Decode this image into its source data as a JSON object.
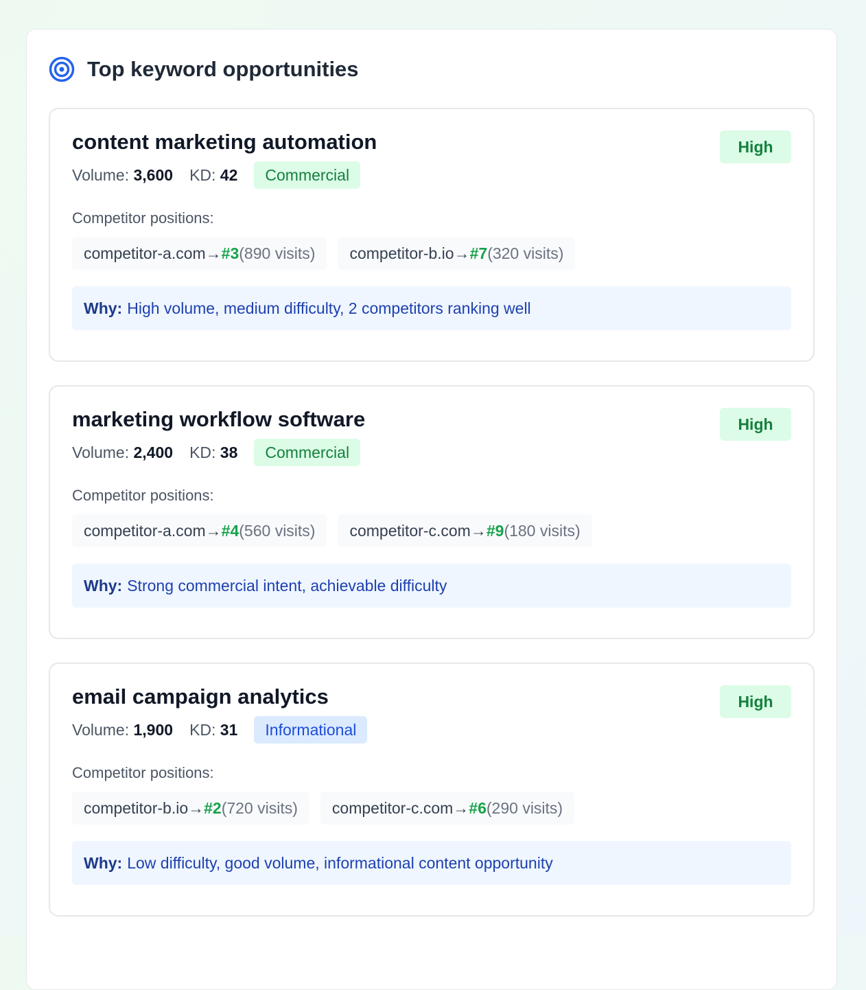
{
  "title": "Top keyword opportunities",
  "icon": "target-icon",
  "labels": {
    "volume": "Volume:",
    "kd": "KD:",
    "competitors": "Competitor positions:",
    "why": "Why:",
    "arrow": "→"
  },
  "colors": {
    "accent": "#2563eb",
    "high_bg": "#dcfce7",
    "high_fg": "#15803d",
    "commercial_bg": "#dcfce7",
    "commercial_fg": "#15803d",
    "informational_bg": "#dbeafe",
    "informational_fg": "#1d4ed8",
    "why_bg": "#eff6ff"
  },
  "keywords": [
    {
      "keyword": "content marketing automation",
      "priority": "High",
      "volume": "3,600",
      "kd": "42",
      "intent": "Commercial",
      "competitors": [
        {
          "domain": "competitor-a.com",
          "position": "#3",
          "visits": "(890 visits)"
        },
        {
          "domain": "competitor-b.io",
          "position": "#7",
          "visits": "(320 visits)"
        }
      ],
      "why": "High volume, medium difficulty, 2 competitors ranking well"
    },
    {
      "keyword": "marketing workflow software",
      "priority": "High",
      "volume": "2,400",
      "kd": "38",
      "intent": "Commercial",
      "competitors": [
        {
          "domain": "competitor-a.com",
          "position": "#4",
          "visits": "(560 visits)"
        },
        {
          "domain": "competitor-c.com",
          "position": "#9",
          "visits": "(180 visits)"
        }
      ],
      "why": "Strong commercial intent, achievable difficulty"
    },
    {
      "keyword": "email campaign analytics",
      "priority": "High",
      "volume": "1,900",
      "kd": "31",
      "intent": "Informational",
      "competitors": [
        {
          "domain": "competitor-b.io",
          "position": "#2",
          "visits": "(720 visits)"
        },
        {
          "domain": "competitor-c.com",
          "position": "#6",
          "visits": "(290 visits)"
        }
      ],
      "why": "Low difficulty, good volume, informational content opportunity"
    }
  ]
}
